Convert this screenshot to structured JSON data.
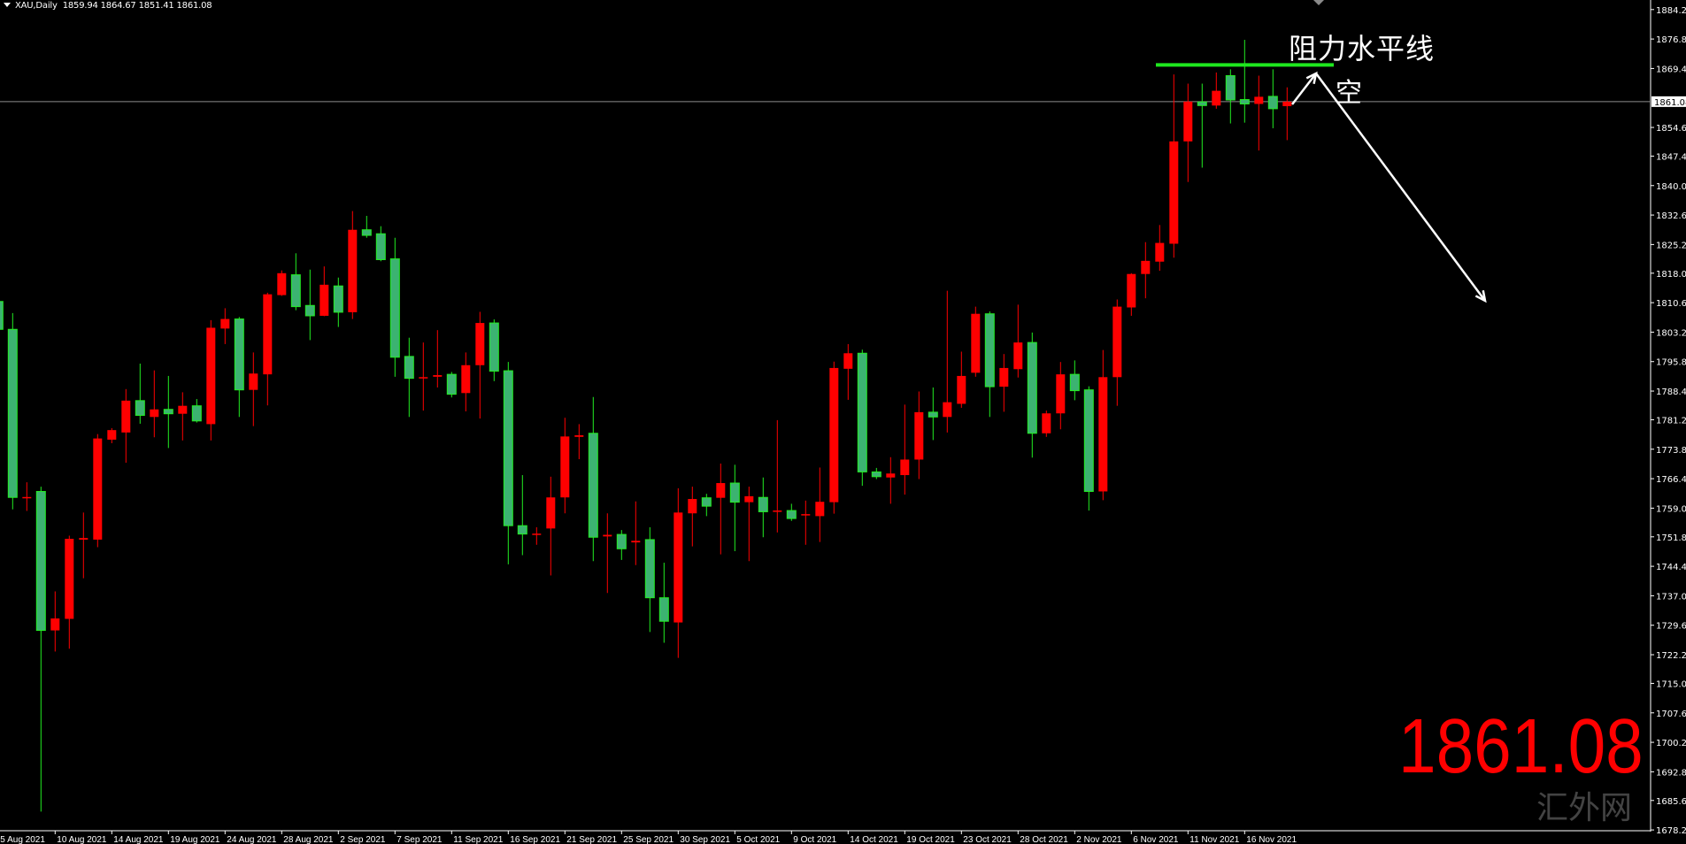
{
  "header": {
    "symbol": "XAU,Daily",
    "ohlc_readout": "1859.94 1864.67 1851.41 1861.08"
  },
  "annotations": {
    "resistance_label": "阻力水平线",
    "short_label": "空",
    "big_price": "1861.08",
    "watermark": "汇外网",
    "resistance_level": 1870.3,
    "resistance_color": "#1ee81e",
    "arrow_color": "#ffffff"
  },
  "chart_data": {
    "type": "candlestick",
    "title": "",
    "xlabel": "",
    "ylabel": "",
    "ylim": [
      1678.0,
      1886.6
    ],
    "grid": false,
    "colors": {
      "background": "#000000",
      "up": "#ff0000",
      "down_body": "#3cb371",
      "down_outline": "#22ee22",
      "axis": "#ffffff",
      "price_line": "#8c8c8c"
    },
    "current_price": 1861.08,
    "current_price_label": "1861.08",
    "y_ticks": [
      "1884.20",
      "1876.80",
      "1869.40",
      "1854.60",
      "1847.40",
      "1840.00",
      "1832.60",
      "1825.20",
      "1818.00",
      "1810.60",
      "1803.20",
      "1795.80",
      "1788.40",
      "1781.20",
      "1773.80",
      "1766.40",
      "1759.00",
      "1751.80",
      "1744.40",
      "1737.00",
      "1729.60",
      "1722.20",
      "1715.00",
      "1707.60",
      "1700.20",
      "1692.80",
      "1685.60",
      "1678.20"
    ],
    "x_ticks": [
      "5 Aug 2021",
      "10 Aug 2021",
      "14 Aug 2021",
      "19 Aug 2021",
      "24 Aug 2021",
      "28 Aug 2021",
      "2 Sep 2021",
      "7 Sep 2021",
      "11 Sep 2021",
      "16 Sep 2021",
      "21 Sep 2021",
      "25 Sep 2021",
      "30 Sep 2021",
      "5 Oct 2021",
      "9 Oct 2021",
      "14 Oct 2021",
      "19 Oct 2021",
      "23 Oct 2021",
      "28 Oct 2021",
      "2 Nov 2021",
      "6 Nov 2021",
      "11 Nov 2021",
      "16 Nov 2021"
    ],
    "candle_fields": [
      "date",
      "open",
      "high",
      "low",
      "close"
    ],
    "candles": [
      [
        "5 Aug 2021",
        1810.9,
        1812.0,
        1802.0,
        1803.9
      ],
      [
        "6 Aug 2021",
        1803.9,
        1808.0,
        1758.7,
        1761.7
      ],
      [
        "7 Aug 2021",
        1761.5,
        1765.5,
        1758.3,
        1761.8
      ],
      [
        "9 Aug 2021",
        1763.2,
        1764.4,
        1682.8,
        1728.3
      ],
      [
        "10 Aug 2021",
        1728.3,
        1738.1,
        1723.0,
        1731.3
      ],
      [
        "11 Aug 2021",
        1731.2,
        1752.1,
        1723.7,
        1751.3
      ],
      [
        "12 Aug 2021",
        1751.1,
        1757.9,
        1741.4,
        1751.5
      ],
      [
        "13 Aug 2021",
        1751.1,
        1777.6,
        1749.2,
        1776.5
      ],
      [
        "14 Aug 2021",
        1776.2,
        1779.1,
        1775.3,
        1778.6
      ],
      [
        "16 Aug 2021",
        1778.0,
        1788.9,
        1770.4,
        1786.0
      ],
      [
        "17 Aug 2021",
        1786.0,
        1795.3,
        1780.2,
        1782.3
      ],
      [
        "18 Aug 2021",
        1781.9,
        1793.6,
        1776.8,
        1783.8
      ],
      [
        "19 Aug 2021",
        1783.8,
        1792.2,
        1774.1,
        1782.7
      ],
      [
        "20 Aug 2021",
        1782.7,
        1788.1,
        1776.0,
        1784.7
      ],
      [
        "21 Aug 2021",
        1784.7,
        1786.4,
        1780.5,
        1780.9
      ],
      [
        "23 Aug 2021",
        1780.1,
        1806.2,
        1776.0,
        1804.3
      ],
      [
        "24 Aug 2021",
        1804.1,
        1809.2,
        1800.2,
        1806.5
      ],
      [
        "25 Aug 2021",
        1806.5,
        1807.0,
        1781.9,
        1788.7
      ],
      [
        "26 Aug 2021",
        1788.7,
        1798.1,
        1779.6,
        1792.8
      ],
      [
        "27 Aug 2021",
        1792.6,
        1813.1,
        1784.8,
        1812.7
      ],
      [
        "28 Aug 2021",
        1812.5,
        1818.7,
        1812.3,
        1818.0
      ],
      [
        "30 Aug 2021",
        1817.6,
        1823.0,
        1808.7,
        1809.6
      ],
      [
        "31 Aug 2021",
        1809.9,
        1818.9,
        1801.2,
        1807.3
      ],
      [
        "1 Sep 2021",
        1807.3,
        1819.7,
        1807.2,
        1815.1
      ],
      [
        "2 Sep 2021",
        1814.8,
        1816.9,
        1804.5,
        1808.2
      ],
      [
        "3 Sep 2021",
        1808.2,
        1833.6,
        1806.5,
        1828.9
      ],
      [
        "4 Sep 2021",
        1828.9,
        1832.4,
        1826.9,
        1827.5
      ],
      [
        "6 Sep 2021",
        1827.9,
        1829.8,
        1821.0,
        1821.4
      ],
      [
        "7 Sep 2021",
        1821.6,
        1826.9,
        1792.0,
        1796.9
      ],
      [
        "8 Sep 2021",
        1797.1,
        1801.8,
        1781.9,
        1791.6
      ],
      [
        "9 Sep 2021",
        1791.7,
        1800.6,
        1783.5,
        1791.9
      ],
      [
        "10 Sep 2021",
        1792.0,
        1803.7,
        1789.3,
        1792.4
      ],
      [
        "11 Sep 2021",
        1792.6,
        1793.2,
        1786.8,
        1787.6
      ],
      [
        "13 Sep 2021",
        1787.9,
        1798.1,
        1783.3,
        1794.9
      ],
      [
        "14 Sep 2021",
        1794.9,
        1808.3,
        1781.5,
        1805.5
      ],
      [
        "15 Sep 2021",
        1805.5,
        1806.4,
        1790.9,
        1793.4
      ],
      [
        "16 Sep 2021",
        1793.5,
        1795.7,
        1744.9,
        1754.6
      ],
      [
        "17 Sep 2021",
        1754.6,
        1767.3,
        1747.2,
        1752.5
      ],
      [
        "18 Sep 2021",
        1752.4,
        1754.2,
        1749.8,
        1752.6
      ],
      [
        "20 Sep 2021",
        1753.9,
        1766.9,
        1742.1,
        1761.7
      ],
      [
        "21 Sep 2021",
        1761.7,
        1781.7,
        1757.7,
        1777.0
      ],
      [
        "22 Sep 2021",
        1776.9,
        1780.1,
        1771.3,
        1777.3
      ],
      [
        "23 Sep 2021",
        1777.8,
        1786.9,
        1745.7,
        1751.7
      ],
      [
        "24 Sep 2021",
        1751.9,
        1757.7,
        1737.7,
        1752.3
      ],
      [
        "25 Sep 2021",
        1752.4,
        1753.5,
        1746.0,
        1748.8
      ],
      [
        "27 Sep 2021",
        1750.4,
        1760.7,
        1744.7,
        1750.8
      ],
      [
        "28 Sep 2021",
        1751.1,
        1754.2,
        1727.9,
        1736.5
      ],
      [
        "29 Sep 2021",
        1736.5,
        1745.3,
        1725.2,
        1730.6
      ],
      [
        "30 Sep 2021",
        1730.3,
        1764.0,
        1721.4,
        1757.9
      ],
      [
        "1 Oct 2021",
        1757.7,
        1764.4,
        1749.4,
        1761.3
      ],
      [
        "2 Oct 2021",
        1761.6,
        1762.6,
        1757.0,
        1759.5
      ],
      [
        "4 Oct 2021",
        1761.6,
        1770.2,
        1747.4,
        1765.3
      ],
      [
        "5 Oct 2021",
        1765.3,
        1769.9,
        1748.2,
        1760.5
      ],
      [
        "6 Oct 2021",
        1760.5,
        1764.4,
        1745.7,
        1762.0
      ],
      [
        "7 Oct 2021",
        1761.7,
        1766.7,
        1751.7,
        1758.1
      ],
      [
        "8 Oct 2021",
        1758.2,
        1781.1,
        1752.9,
        1758.4
      ],
      [
        "9 Oct 2021",
        1758.4,
        1760.1,
        1755.8,
        1756.4
      ],
      [
        "11 Oct 2021",
        1757.2,
        1760.9,
        1749.8,
        1757.5
      ],
      [
        "12 Oct 2021",
        1757.0,
        1769.2,
        1750.5,
        1760.6
      ],
      [
        "13 Oct 2021",
        1760.5,
        1795.8,
        1757.6,
        1794.2
      ],
      [
        "14 Oct 2021",
        1794.0,
        1800.2,
        1786.2,
        1797.9
      ],
      [
        "15 Oct 2021",
        1797.9,
        1798.8,
        1764.6,
        1768.1
      ],
      [
        "16 Oct 2021",
        1768.1,
        1769.1,
        1766.3,
        1766.9
      ],
      [
        "18 Oct 2021",
        1766.7,
        1771.8,
        1760.1,
        1767.7
      ],
      [
        "19 Oct 2021",
        1767.3,
        1785.0,
        1762.4,
        1771.2
      ],
      [
        "20 Oct 2021",
        1771.2,
        1788.3,
        1766.3,
        1783.1
      ],
      [
        "21 Oct 2021",
        1783.1,
        1789.3,
        1776.1,
        1781.9
      ],
      [
        "22 Oct 2021",
        1781.9,
        1813.6,
        1778.0,
        1785.6
      ],
      [
        "23 Oct 2021",
        1785.2,
        1798.3,
        1784.2,
        1792.2
      ],
      [
        "25 Oct 2021",
        1793.0,
        1809.6,
        1792.0,
        1807.8
      ],
      [
        "26 Oct 2021",
        1807.8,
        1808.4,
        1781.9,
        1789.5
      ],
      [
        "27 Oct 2021",
        1789.5,
        1797.7,
        1783.2,
        1794.2
      ],
      [
        "28 Oct 2021",
        1793.9,
        1810.1,
        1791.8,
        1800.6
      ],
      [
        "29 Oct 2021",
        1800.6,
        1803.1,
        1771.7,
        1777.8
      ],
      [
        "30 Oct 2021",
        1777.8,
        1783.5,
        1776.9,
        1782.8
      ],
      [
        "1 Nov 2021",
        1782.8,
        1795.7,
        1778.8,
        1792.6
      ],
      [
        "2 Nov 2021",
        1792.6,
        1796.1,
        1786.1,
        1788.5
      ],
      [
        "3 Nov 2021",
        1788.7,
        1789.6,
        1758.4,
        1763.2
      ],
      [
        "4 Nov 2021",
        1763.2,
        1798.7,
        1761.0,
        1791.9
      ],
      [
        "5 Nov 2021",
        1791.9,
        1811.4,
        1784.7,
        1809.6
      ],
      [
        "6 Nov 2021",
        1809.4,
        1818.0,
        1807.3,
        1817.8
      ],
      [
        "8 Nov 2021",
        1817.8,
        1825.8,
        1811.7,
        1821.1
      ],
      [
        "9 Nov 2021",
        1820.9,
        1830.1,
        1818.6,
        1825.6
      ],
      [
        "10 Nov 2021",
        1825.4,
        1867.9,
        1821.9,
        1851.1
      ],
      [
        "11 Nov 2021",
        1851.1,
        1865.6,
        1840.9,
        1861.1
      ],
      [
        "12 Nov 2021",
        1861.0,
        1865.6,
        1844.5,
        1860.1
      ],
      [
        "13 Nov 2021",
        1860.1,
        1868.4,
        1859.3,
        1863.8
      ],
      [
        "15 Nov 2021",
        1867.6,
        1869.2,
        1855.6,
        1861.5
      ],
      [
        "16 Nov 2021",
        1861.6,
        1876.6,
        1855.8,
        1860.5
      ],
      [
        "17 Nov 2021",
        1860.5,
        1867.6,
        1848.8,
        1862.3
      ],
      [
        "18 Nov 2021",
        1862.4,
        1869.2,
        1854.4,
        1859.3
      ],
      [
        "19 Nov 2021",
        1859.94,
        1864.67,
        1851.41,
        1861.08
      ]
    ]
  }
}
